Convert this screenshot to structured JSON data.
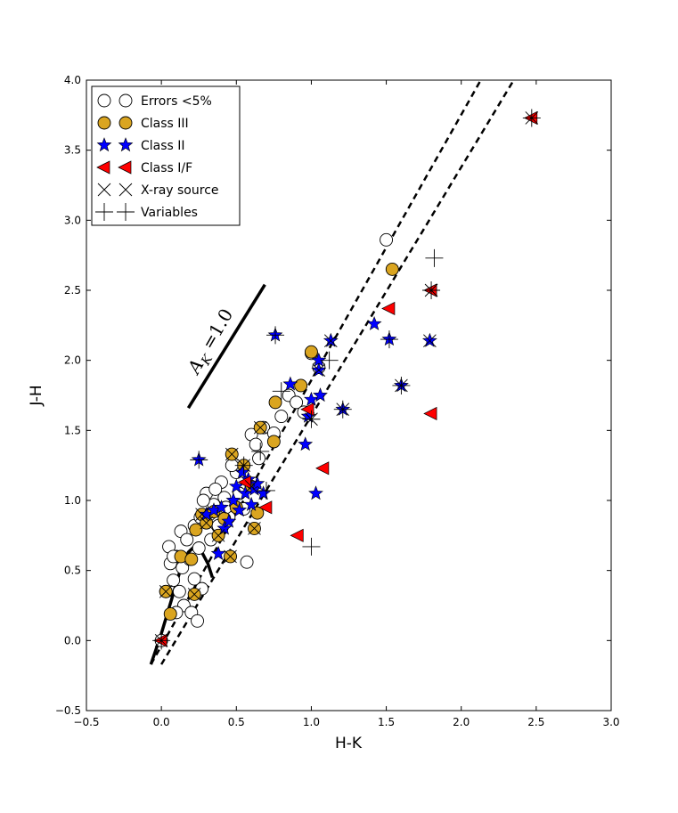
{
  "chart_data": {
    "type": "scatter",
    "xlabel": "H-K",
    "ylabel": "J-H",
    "xlim": [
      -0.5,
      3.0
    ],
    "ylim": [
      -0.5,
      4.0
    ],
    "xticks": [
      "−0.5",
      "0.0",
      "0.5",
      "1.0",
      "1.5",
      "2.0",
      "2.5",
      "3.0"
    ],
    "yticks": [
      "−0.5",
      "0.0",
      "0.5",
      "1.0",
      "1.5",
      "2.0",
      "2.5",
      "3.0",
      "3.5",
      "4.0"
    ],
    "xtick_values": [
      -0.5,
      0.0,
      0.5,
      1.0,
      1.5,
      2.0,
      2.5,
      3.0
    ],
    "ytick_values": [
      -0.5,
      0.0,
      0.5,
      1.0,
      1.5,
      2.0,
      2.5,
      3.0,
      3.5,
      4.0
    ],
    "legend_position": "top-left",
    "legend": [
      {
        "label": "Errors <5%",
        "marker": "open-circle"
      },
      {
        "label": "Class III",
        "marker": "gold-circle"
      },
      {
        "label": "Class II",
        "marker": "blue-star"
      },
      {
        "label": "Class I/F",
        "marker": "red-triangle"
      },
      {
        "label": "X-ray source",
        "marker": "x-cross"
      },
      {
        "label": "Variables",
        "marker": "plus"
      }
    ],
    "annotation": {
      "text": "A",
      "subscript": "K",
      "suffix": " =1.0"
    },
    "reddening_vector": [
      [
        0.18,
        1.66
      ],
      [
        0.69,
        2.54
      ]
    ],
    "reddening_band_upper": [
      [
        -0.07,
        -0.17
      ],
      [
        2.13,
        4.0
      ]
    ],
    "reddening_band_lower": [
      [
        0.0,
        -0.17
      ],
      [
        2.35,
        4.0
      ]
    ],
    "locus": [
      [
        -0.07,
        -0.17
      ],
      [
        0.0,
        0.05
      ],
      [
        0.07,
        0.3
      ],
      [
        0.12,
        0.48
      ],
      [
        0.18,
        0.63
      ],
      [
        0.23,
        0.68
      ],
      [
        0.27,
        0.63
      ],
      [
        0.31,
        0.55
      ],
      [
        0.34,
        0.45
      ]
    ],
    "series": [
      {
        "name": "Errors <5%",
        "points": [
          [
            0.0,
            0.0
          ],
          [
            0.05,
            0.67
          ],
          [
            0.08,
            0.43
          ],
          [
            0.1,
            0.6
          ],
          [
            0.12,
            0.35
          ],
          [
            0.13,
            0.78
          ],
          [
            0.15,
            0.25
          ],
          [
            0.17,
            0.72
          ],
          [
            0.2,
            0.2
          ],
          [
            0.22,
            0.44
          ],
          [
            0.24,
            0.14
          ],
          [
            0.25,
            0.66
          ],
          [
            0.27,
            0.37
          ],
          [
            0.3,
            1.05
          ],
          [
            0.32,
            0.9
          ],
          [
            0.35,
            0.97
          ],
          [
            0.38,
            0.82
          ],
          [
            0.4,
            1.13
          ],
          [
            0.42,
            1.02
          ],
          [
            0.45,
            0.88
          ],
          [
            0.5,
            1.2
          ],
          [
            0.52,
            1.05
          ],
          [
            0.55,
            0.94
          ],
          [
            0.57,
            0.56
          ],
          [
            0.6,
            1.47
          ],
          [
            0.63,
            1.4
          ],
          [
            0.65,
            1.3
          ],
          [
            0.68,
            1.52
          ],
          [
            0.75,
            1.48
          ],
          [
            0.8,
            1.6
          ],
          [
            0.85,
            1.75
          ],
          [
            0.9,
            1.7
          ],
          [
            0.95,
            1.63
          ],
          [
            1.0,
            2.05
          ],
          [
            1.05,
            1.95
          ],
          [
            1.5,
            2.86
          ],
          [
            0.1,
            0.2
          ],
          [
            0.06,
            0.55
          ],
          [
            0.14,
            0.52
          ],
          [
            0.19,
            0.58
          ],
          [
            0.28,
            1.0
          ],
          [
            0.33,
            0.72
          ],
          [
            0.36,
            1.08
          ],
          [
            0.43,
            0.95
          ],
          [
            0.47,
            1.25
          ],
          [
            0.22,
            0.82
          ],
          [
            0.26,
            0.88
          ],
          [
            0.08,
            0.6
          ],
          [
            0.03,
            0.35
          ]
        ]
      },
      {
        "name": "Class III",
        "points": [
          [
            0.03,
            0.35
          ],
          [
            0.06,
            0.19
          ],
          [
            0.13,
            0.6
          ],
          [
            0.2,
            0.58
          ],
          [
            0.22,
            0.33
          ],
          [
            0.23,
            0.79
          ],
          [
            0.27,
            0.9
          ],
          [
            0.3,
            0.84
          ],
          [
            0.38,
            0.75
          ],
          [
            0.46,
            0.6
          ],
          [
            0.47,
            1.33
          ],
          [
            0.55,
            1.25
          ],
          [
            0.6,
            1.1
          ],
          [
            0.62,
            0.8
          ],
          [
            0.64,
            0.91
          ],
          [
            0.66,
            1.52
          ],
          [
            0.75,
            1.42
          ],
          [
            0.76,
            1.7
          ],
          [
            0.93,
            1.82
          ],
          [
            1.0,
            2.06
          ],
          [
            1.54,
            2.65
          ],
          [
            0.35,
            0.92
          ],
          [
            0.42,
            0.87
          ],
          [
            0.5,
            0.95
          ]
        ]
      },
      {
        "name": "Class II",
        "points": [
          [
            0.25,
            1.29
          ],
          [
            0.38,
            0.62
          ],
          [
            0.42,
            0.8
          ],
          [
            0.45,
            0.85
          ],
          [
            0.48,
            1.0
          ],
          [
            0.5,
            1.1
          ],
          [
            0.52,
            0.93
          ],
          [
            0.54,
            1.2
          ],
          [
            0.56,
            1.05
          ],
          [
            0.58,
            1.15
          ],
          [
            0.6,
            0.97
          ],
          [
            0.62,
            1.08
          ],
          [
            0.64,
            1.12
          ],
          [
            0.68,
            1.05
          ],
          [
            0.76,
            2.18
          ],
          [
            0.86,
            1.83
          ],
          [
            0.96,
            1.4
          ],
          [
            0.98,
            1.6
          ],
          [
            1.0,
            1.72
          ],
          [
            1.03,
            1.05
          ],
          [
            1.05,
            1.93
          ],
          [
            1.05,
            2.0
          ],
          [
            1.06,
            1.75
          ],
          [
            1.13,
            2.14
          ],
          [
            1.21,
            1.65
          ],
          [
            1.42,
            2.26
          ],
          [
            1.52,
            2.15
          ],
          [
            1.6,
            1.82
          ],
          [
            1.79,
            2.14
          ],
          [
            0.3,
            0.9
          ],
          [
            0.35,
            0.93
          ],
          [
            0.4,
            0.95
          ]
        ]
      },
      {
        "name": "Class I/F",
        "points": [
          [
            0.0,
            0.0
          ],
          [
            0.56,
            1.13
          ],
          [
            0.7,
            0.95
          ],
          [
            0.91,
            0.75
          ],
          [
            0.98,
            1.65
          ],
          [
            1.08,
            1.23
          ],
          [
            1.52,
            2.37
          ],
          [
            1.8,
            2.5
          ],
          [
            1.8,
            1.62
          ],
          [
            2.47,
            3.73
          ]
        ]
      },
      {
        "name": "X-ray source",
        "points": [
          [
            0.0,
            0.0
          ],
          [
            0.47,
            1.33
          ],
          [
            0.55,
            1.25
          ],
          [
            0.6,
            1.1
          ],
          [
            0.62,
            0.8
          ],
          [
            0.66,
            1.52
          ],
          [
            1.0,
            1.58
          ],
          [
            1.05,
            1.93
          ],
          [
            1.13,
            2.14
          ],
          [
            1.21,
            1.65
          ],
          [
            1.6,
            1.82
          ],
          [
            1.79,
            2.14
          ],
          [
            1.8,
            2.5
          ],
          [
            2.47,
            3.73
          ],
          [
            0.3,
            0.84
          ],
          [
            0.38,
            0.75
          ],
          [
            0.46,
            0.6
          ],
          [
            0.22,
            0.33
          ],
          [
            0.03,
            0.35
          ],
          [
            0.27,
            0.9
          ]
        ]
      },
      {
        "name": "Variables",
        "points": [
          [
            0.0,
            0.0
          ],
          [
            0.25,
            1.29
          ],
          [
            0.55,
            1.25
          ],
          [
            0.66,
            1.35
          ],
          [
            0.7,
            1.07
          ],
          [
            0.76,
            2.18
          ],
          [
            0.8,
            1.78
          ],
          [
            1.0,
            0.67
          ],
          [
            1.0,
            1.58
          ],
          [
            1.12,
            2.0
          ],
          [
            1.21,
            1.65
          ],
          [
            1.52,
            2.15
          ],
          [
            1.6,
            1.82
          ],
          [
            1.8,
            2.5
          ],
          [
            1.82,
            2.73
          ],
          [
            2.47,
            3.73
          ]
        ]
      }
    ]
  }
}
